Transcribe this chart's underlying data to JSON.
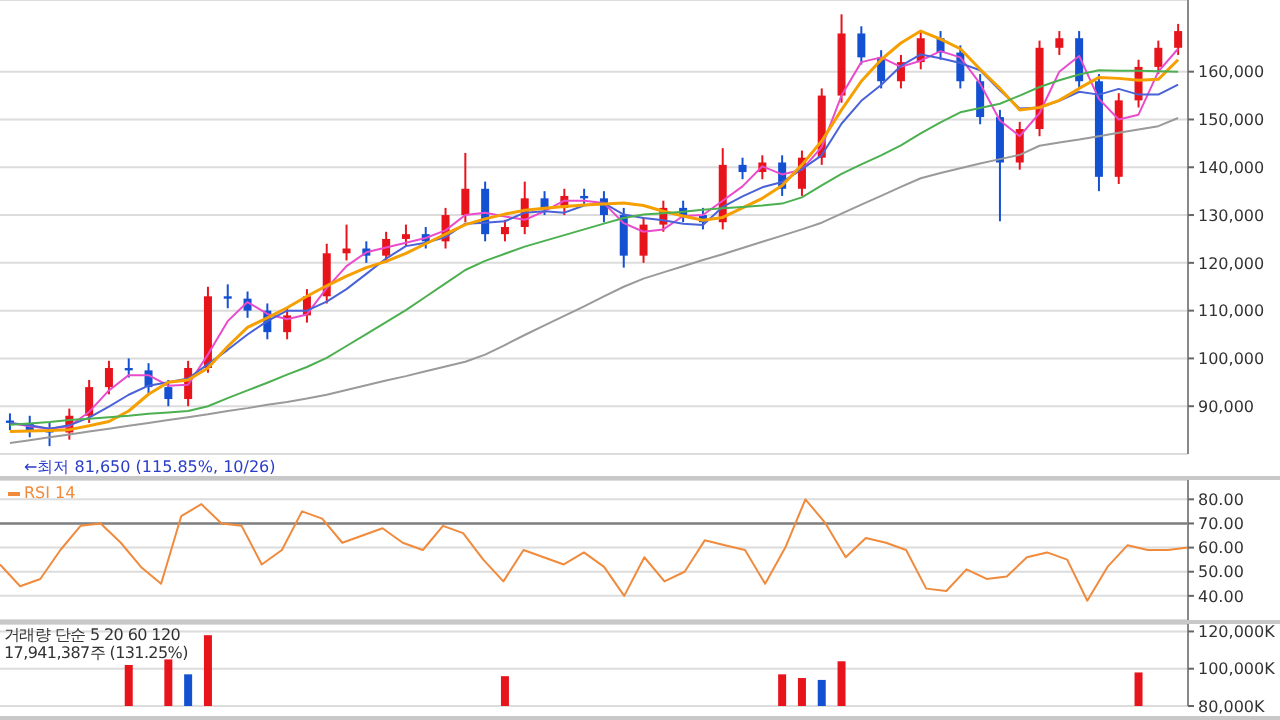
{
  "chart_data": [
    {
      "type": "candlestick",
      "categories": [
        null,
        null,
        null,
        null,
        null,
        null,
        null,
        null,
        null,
        null,
        null,
        null,
        null,
        null,
        null,
        null,
        null,
        null,
        null,
        null,
        null,
        null,
        null,
        null,
        null,
        null,
        null,
        null,
        null,
        null,
        null,
        null,
        null,
        null,
        null,
        null,
        null,
        null,
        null,
        null,
        null,
        null,
        null,
        null,
        null,
        null,
        null,
        null,
        null,
        null,
        null,
        null,
        null,
        null,
        null,
        null,
        null,
        null,
        null,
        null
      ],
      "ohlc": [
        [
          87000,
          88500,
          85000,
          86500
        ],
        [
          86500,
          88000,
          83500,
          85000
        ],
        [
          85000,
          86500,
          81650,
          84500
        ],
        [
          84500,
          89500,
          83000,
          88000
        ],
        [
          88000,
          95500,
          86500,
          94000
        ],
        [
          94000,
          99500,
          92500,
          98000
        ],
        [
          98000,
          100000,
          96000,
          97500
        ],
        [
          97500,
          99000,
          92500,
          94000
        ],
        [
          94000,
          95500,
          90000,
          91500
        ],
        [
          91500,
          99500,
          90000,
          98000
        ],
        [
          98000,
          115000,
          97000,
          113000
        ],
        [
          113000,
          115500,
          110500,
          112500
        ],
        [
          112500,
          114000,
          108500,
          110000
        ],
        [
          110000,
          111500,
          104000,
          105500
        ],
        [
          105500,
          110500,
          104000,
          109000
        ],
        [
          109000,
          114500,
          107500,
          113000
        ],
        [
          113000,
          124000,
          111500,
          122000
        ],
        [
          122000,
          128000,
          120500,
          123000
        ],
        [
          123000,
          124500,
          120000,
          121500
        ],
        [
          121500,
          126500,
          120000,
          125000
        ],
        [
          125000,
          128000,
          123500,
          126000
        ],
        [
          126000,
          127500,
          123000,
          124500
        ],
        [
          124500,
          131500,
          123000,
          130000
        ],
        [
          130000,
          143000,
          128500,
          135500
        ],
        [
          135500,
          137000,
          124500,
          126000
        ],
        [
          126000,
          129000,
          124500,
          127500
        ],
        [
          127500,
          137000,
          126000,
          133500
        ],
        [
          133500,
          135000,
          130000,
          131500
        ],
        [
          131500,
          135500,
          130000,
          134000
        ],
        [
          134000,
          135500,
          132000,
          133500
        ],
        [
          133500,
          135000,
          128500,
          130000
        ],
        [
          130000,
          131500,
          119000,
          121500
        ],
        [
          121500,
          129500,
          120000,
          128000
        ],
        [
          128000,
          133000,
          126500,
          131500
        ],
        [
          131500,
          133000,
          128500,
          130000
        ],
        [
          130000,
          131500,
          127000,
          128500
        ],
        [
          128500,
          144000,
          127000,
          140500
        ],
        [
          140500,
          142000,
          137500,
          139000
        ],
        [
          139000,
          142500,
          137500,
          141000
        ],
        [
          141000,
          142500,
          134000,
          135500
        ],
        [
          135500,
          143500,
          134000,
          142000
        ],
        [
          142000,
          156500,
          140500,
          155000
        ],
        [
          155000,
          172000,
          153500,
          168000
        ],
        [
          168000,
          169500,
          161500,
          163000
        ],
        [
          163000,
          164500,
          156500,
          158000
        ],
        [
          158000,
          163500,
          156500,
          162000
        ],
        [
          162000,
          168500,
          160500,
          167000
        ],
        [
          167000,
          168500,
          162500,
          164000
        ],
        [
          164000,
          165500,
          156500,
          158000
        ],
        [
          158000,
          159500,
          149000,
          150500
        ],
        [
          150500,
          152000,
          128700,
          141000
        ],
        [
          141000,
          149500,
          139500,
          148000
        ],
        [
          148000,
          166500,
          146500,
          165000
        ],
        [
          165000,
          168500,
          163500,
          167000
        ],
        [
          167000,
          168500,
          156500,
          158000
        ],
        [
          158000,
          159500,
          135000,
          138000
        ],
        [
          138000,
          155500,
          136500,
          154000
        ],
        [
          154000,
          162500,
          152500,
          161000
        ],
        [
          161000,
          166500,
          159500,
          165000
        ],
        [
          165000,
          170000,
          163500,
          168500
        ]
      ],
      "colors": [
        "#1450d2",
        "#1450d2",
        "#1450d2",
        "#e8141c",
        "#e8141c",
        "#e8141c",
        "#1450d2",
        "#1450d2",
        "#1450d2",
        "#e8141c",
        "#e8141c",
        "#1450d2",
        "#1450d2",
        "#1450d2",
        "#e8141c",
        "#e8141c",
        "#e8141c",
        "#e8141c",
        "#1450d2",
        "#e8141c",
        "#e8141c",
        "#1450d2",
        "#e8141c",
        "#e8141c",
        "#1450d2",
        "#e8141c",
        "#e8141c",
        "#1450d2",
        "#e8141c",
        "#1450d2",
        "#1450d2",
        "#1450d2",
        "#e8141c",
        "#e8141c",
        "#1450d2",
        "#1450d2",
        "#e8141c",
        "#1450d2",
        "#e8141c",
        "#1450d2",
        "#e8141c",
        "#e8141c",
        "#e8141c",
        "#1450d2",
        "#1450d2",
        "#e8141c",
        "#e8141c",
        "#1450d2",
        "#1450d2",
        "#1450d2",
        "#1450d2",
        "#e8141c",
        "#e8141c",
        "#e8141c",
        "#1450d2",
        "#1450d2",
        "#e8141c",
        "#e8141c",
        "#e8141c",
        "#e8141c"
      ],
      "series": [
        {
          "type": "line",
          "color": "#e84ccc",
          "values": [
            86500,
            85800,
            85300,
            85800,
            88800,
            93300,
            96500,
            96500,
            94300,
            94500,
            100800,
            107800,
            111800,
            109300,
            108200,
            109200,
            114700,
            119300,
            122200,
            123200,
            124200,
            125200,
            126800,
            130000,
            130500,
            129700,
            129000,
            130800,
            133000,
            133000,
            132500,
            128300,
            126500,
            127000,
            129800,
            130000,
            133000,
            136000,
            140200,
            138500,
            139500,
            144200,
            155000,
            162000,
            163000,
            161000,
            162300,
            164300,
            163000,
            157500,
            149800,
            146500,
            151300,
            160000,
            163300,
            154300,
            150000,
            151000,
            160000,
            164800
          ]
        },
        {
          "type": "line",
          "color": "#4a62d8",
          "values": [
            86500,
            86000,
            85300,
            86000,
            87600,
            89900,
            92400,
            94300,
            95000,
            95800,
            98800,
            101800,
            105000,
            107800,
            110000,
            110000,
            111900,
            114500,
            117700,
            120900,
            123500,
            124200,
            125400,
            128200,
            128400,
            128700,
            130500,
            130800,
            130500,
            132000,
            132500,
            130100,
            129400,
            128900,
            128200,
            127900,
            131700,
            133900,
            135800,
            136900,
            139600,
            142500,
            149100,
            153900,
            157200,
            161200,
            163600,
            162800,
            161800,
            160300,
            156100,
            152300,
            152500,
            153900,
            155800,
            155200,
            156400,
            155200,
            155200,
            157300
          ]
        },
        {
          "type": "line",
          "color": "#f5a000",
          "values": [
            84700,
            84800,
            84900,
            85100,
            85900,
            86800,
            89000,
            92500,
            95000,
            95500,
            98000,
            102500,
            106500,
            108500,
            110600,
            113000,
            115200,
            117200,
            119000,
            120300,
            122000,
            124000,
            126000,
            128000,
            129200,
            130200,
            131000,
            131400,
            131800,
            132100,
            132300,
            132500,
            132000,
            130800,
            129800,
            128900,
            129500,
            131500,
            133500,
            136200,
            140500,
            145500,
            152000,
            158000,
            162500,
            166000,
            168500,
            166800,
            164800,
            160500,
            156500,
            152000,
            152500,
            154000,
            156500,
            158800,
            158600,
            158200,
            158400,
            162500
          ]
        },
        {
          "type": "line",
          "color": "#4cb050",
          "values": [
            86100,
            86400,
            86700,
            87100,
            87400,
            87700,
            88000,
            88400,
            88700,
            89000,
            90000,
            91700,
            93300,
            94900,
            96600,
            98200,
            100100,
            102600,
            105100,
            107600,
            110100,
            112900,
            115700,
            118500,
            120400,
            121900,
            123400,
            124600,
            125800,
            127000,
            128200,
            129400,
            130100,
            130400,
            130700,
            131100,
            131400,
            131700,
            132000,
            132400,
            133700,
            136200,
            138600,
            140600,
            142500,
            144600,
            147100,
            149400,
            151500,
            152400,
            153300,
            155000,
            156800,
            158200,
            159400,
            160300,
            160200,
            160200,
            160100,
            160000
          ]
        },
        {
          "type": "line",
          "color": "#9a9a9a",
          "values": [
            82300,
            82900,
            83500,
            84100,
            84700,
            85300,
            85900,
            86500,
            87100,
            87700,
            88300,
            89000,
            89600,
            90300,
            90900,
            91600,
            92400,
            93400,
            94400,
            95400,
            96300,
            97300,
            98300,
            99300,
            100800,
            102800,
            104900,
            106900,
            108900,
            110900,
            113000,
            115000,
            116700,
            118000,
            119300,
            120600,
            121800,
            123100,
            124400,
            125700,
            127000,
            128400,
            130300,
            132200,
            134000,
            135900,
            137700,
            138800,
            139800,
            140800,
            141700,
            142600,
            144500,
            145200,
            145800,
            146500,
            147200,
            147900,
            148600,
            150300
          ]
        }
      ],
      "ylim": [
        80000,
        175000
      ],
      "yticks": [
        {
          "value": 90000,
          "label": "90,000"
        },
        {
          "value": 100000,
          "label": "100,000"
        },
        {
          "value": 110000,
          "label": "110,000"
        },
        {
          "value": 120000,
          "label": "120,000"
        },
        {
          "value": 130000,
          "label": "130,000"
        },
        {
          "value": 140000,
          "label": "140,000"
        },
        {
          "value": 150000,
          "label": "150,000"
        },
        {
          "value": 160000,
          "label": "160,000"
        }
      ],
      "grid": "y",
      "tick_labels": "y",
      "marker": "none",
      "annotations": [
        "←최저 81,650 (115.85%, 10/26)"
      ]
    },
    {
      "type": "line",
      "categories": [
        null,
        null,
        null,
        null,
        null,
        null,
        null,
        null,
        null,
        null,
        null,
        null,
        null,
        null,
        null,
        null,
        null,
        null,
        null,
        null,
        null,
        null,
        null,
        null,
        null,
        null,
        null,
        null,
        null,
        null,
        null,
        null,
        null,
        null,
        null,
        null,
        null,
        null,
        null,
        null,
        null,
        null,
        null,
        null,
        null,
        null,
        null,
        null,
        null,
        null,
        null,
        null,
        null,
        null,
        null,
        null,
        null,
        null,
        null,
        null
      ],
      "series": [
        {
          "name": "RSI 14",
          "color": "#f08a3c",
          "values": [
            53,
            44,
            47,
            59,
            69,
            70,
            62,
            52,
            45,
            73,
            78,
            70,
            69,
            53,
            59,
            75,
            72,
            62,
            65,
            68,
            62,
            59,
            69,
            66,
            55,
            46,
            59,
            56,
            53,
            58,
            52,
            40,
            56,
            46,
            50,
            63,
            61,
            59,
            45,
            60,
            80,
            70,
            56,
            64,
            62,
            59,
            43,
            42,
            51,
            47,
            48,
            56,
            58,
            55,
            38,
            52,
            61,
            59,
            59,
            60
          ]
        }
      ],
      "ylim": [
        30,
        88
      ],
      "yticks": [
        {
          "value": 40,
          "label": "40.00"
        },
        {
          "value": 50,
          "label": "50.00"
        },
        {
          "value": 60,
          "label": "60.00"
        },
        {
          "value": 70,
          "label": "70.00"
        },
        {
          "value": 80,
          "label": "80.00"
        }
      ],
      "ref_lines": [
        {
          "axis": "y",
          "value": 70,
          "color": "#808080"
        }
      ],
      "grid": "y",
      "legend": "top left",
      "tick_labels": "y",
      "marker": "none"
    },
    {
      "type": "bar",
      "categories": [
        null,
        null,
        null,
        null,
        null,
        null,
        null,
        null,
        null,
        null,
        null,
        null,
        null,
        null,
        null,
        null,
        null,
        null,
        null,
        null,
        null,
        null,
        null,
        null,
        null,
        null,
        null,
        null,
        null,
        null,
        null,
        null,
        null,
        null,
        null,
        null,
        null,
        null,
        null,
        null,
        null,
        null,
        null,
        null,
        null,
        null,
        null,
        null,
        null,
        null,
        null,
        null,
        null,
        null,
        null,
        null,
        null,
        null,
        null,
        null
      ],
      "values": [
        null,
        null,
        null,
        null,
        null,
        null,
        102000,
        null,
        105000,
        97000,
        118000,
        null,
        null,
        null,
        null,
        null,
        null,
        null,
        null,
        null,
        null,
        null,
        null,
        null,
        null,
        96000,
        null,
        null,
        null,
        null,
        null,
        null,
        null,
        null,
        null,
        null,
        null,
        null,
        null,
        97000,
        95000,
        94000,
        104000,
        null,
        null,
        null,
        null,
        null,
        null,
        null,
        null,
        null,
        null,
        null,
        null,
        null,
        null,
        98000,
        null,
        null
      ],
      "colors": [
        "#e8141c",
        "#e8141c",
        "#e8141c",
        "#e8141c",
        "#e8141c",
        "#e8141c",
        "#e8141c",
        "#e8141c",
        "#e8141c",
        "#1450d2",
        "#e8141c",
        "#e8141c",
        "#e8141c",
        "#e8141c",
        "#e8141c",
        "#e8141c",
        "#e8141c",
        "#e8141c",
        "#e8141c",
        "#e8141c",
        "#e8141c",
        "#e8141c",
        "#e8141c",
        "#e8141c",
        "#e8141c",
        "#e8141c",
        "#e8141c",
        "#e8141c",
        "#e8141c",
        "#e8141c",
        "#e8141c",
        "#e8141c",
        "#e8141c",
        "#e8141c",
        "#e8141c",
        "#e8141c",
        "#e8141c",
        "#e8141c",
        "#e8141c",
        "#e8141c",
        "#e8141c",
        "#1450d2",
        "#e8141c",
        "#e8141c",
        "#e8141c",
        "#e8141c",
        "#e8141c",
        "#e8141c",
        "#e8141c",
        "#e8141c",
        "#e8141c",
        "#e8141c",
        "#e8141c",
        "#e8141c",
        "#e8141c",
        "#e8141c",
        "#e8141c",
        "#e8141c",
        "#e8141c",
        "#e8141c"
      ],
      "ylim": [
        80000,
        124000
      ],
      "yticks": [
        {
          "value": 80000,
          "label": "80,000K"
        },
        {
          "value": 100000,
          "label": "100,000K"
        },
        {
          "value": 120000,
          "label": "120,000K"
        }
      ],
      "grid": "y",
      "tick_labels": "y",
      "annotations": [
        "거래량 단순 5 20 60 120",
        "17,941,387주 (131.25%)"
      ]
    }
  ]
}
